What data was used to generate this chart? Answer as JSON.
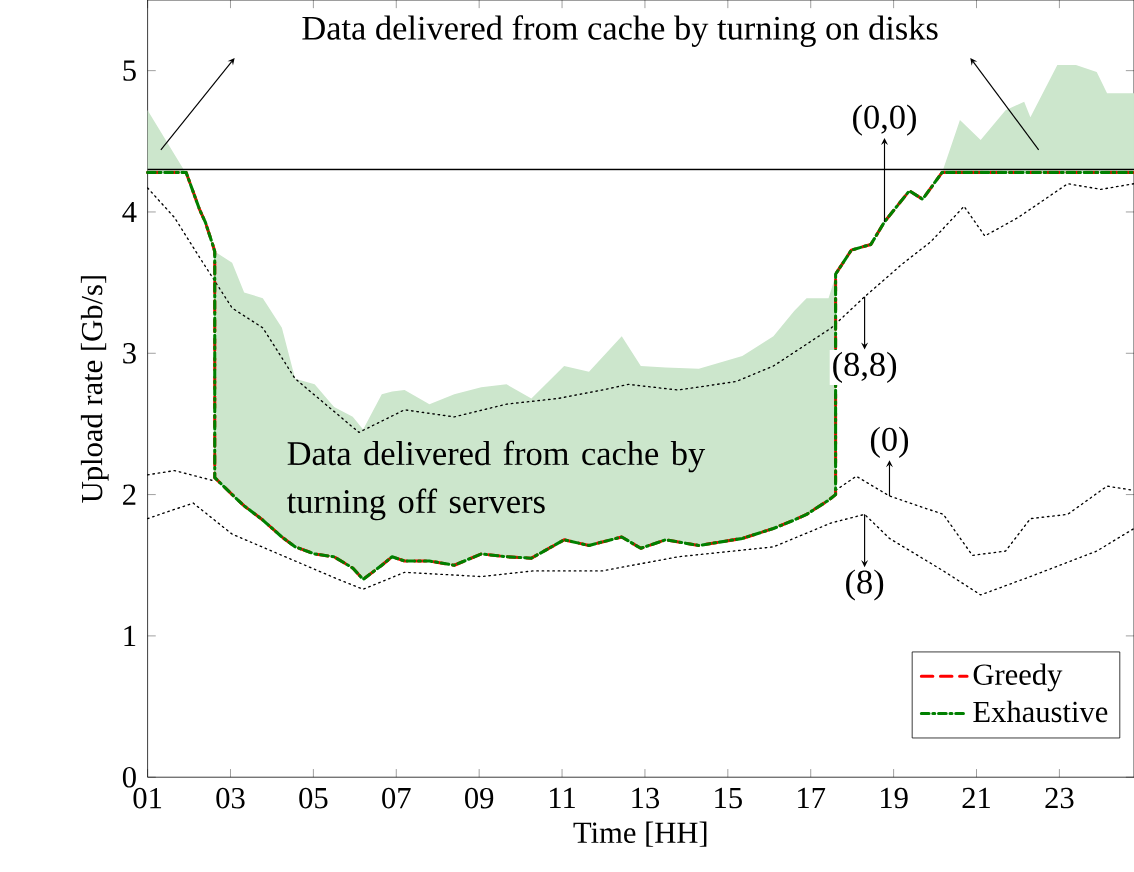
{
  "chart_data": {
    "type": "line",
    "xlabel": "Time [HH]",
    "ylabel": "Upload rate [Gb/s]",
    "xlim": [
      1,
      24.8
    ],
    "ylim": [
      0,
      5.5
    ],
    "xticks": [
      {
        "value": 1,
        "label": "01"
      },
      {
        "value": 3,
        "label": "03"
      },
      {
        "value": 5,
        "label": "05"
      },
      {
        "value": 7,
        "label": "07"
      },
      {
        "value": 9,
        "label": "09"
      },
      {
        "value": 11,
        "label": "11"
      },
      {
        "value": 13,
        "label": "13"
      },
      {
        "value": 15,
        "label": "15"
      },
      {
        "value": 17,
        "label": "17"
      },
      {
        "value": 19,
        "label": "19"
      },
      {
        "value": 21,
        "label": "21"
      },
      {
        "value": 23,
        "label": "23"
      }
    ],
    "yticks": [
      0,
      1,
      2,
      3,
      4,
      5
    ],
    "legend": "bottom right",
    "x": [
      1,
      1.87,
      1.93,
      2.25,
      2.39,
      2.57,
      2.62,
      2.62,
      3.04,
      3.33,
      3.78,
      4.24,
      4.56,
      5.03,
      5.5,
      5.95,
      6.2,
      6.65,
      6.9,
      7.2,
      7.8,
      8.4,
      9.05,
      9.66,
      10.26,
      11.05,
      11.65,
      12.44,
      12.9,
      13.5,
      14.3,
      15.35,
      16.1,
      16.6,
      16.9,
      17.43,
      17.6,
      17.6,
      17.98,
      18.45,
      18.78,
      19.38,
      19.7,
      20.17,
      20.6,
      21.1,
      21.7,
      22.15,
      22.3,
      22.95,
      23.4,
      23.9,
      24.15,
      24.8
    ],
    "series": [
      {
        "name": "Greedy",
        "color": "#ff0000",
        "line_style": "dashed",
        "values": [
          4.28,
          4.28,
          4.28,
          4.02,
          3.93,
          3.77,
          3.72,
          2.12,
          2.0,
          1.92,
          1.82,
          1.7,
          1.63,
          1.58,
          1.56,
          1.48,
          1.4,
          1.5,
          1.56,
          1.53,
          1.53,
          1.5,
          1.58,
          1.56,
          1.55,
          1.68,
          1.64,
          1.7,
          1.62,
          1.68,
          1.64,
          1.69,
          1.76,
          1.82,
          1.86,
          1.96,
          2.0,
          3.56,
          3.73,
          3.77,
          3.93,
          4.15,
          4.09,
          4.28,
          4.28,
          4.28,
          4.28,
          4.28,
          4.28,
          4.28,
          4.28,
          4.28,
          4.28,
          4.28
        ]
      },
      {
        "name": "Exhaustive",
        "color": "#008000",
        "line_style": "dashdot",
        "values": [
          4.28,
          4.28,
          4.28,
          4.02,
          3.93,
          3.77,
          3.72,
          2.12,
          2.0,
          1.92,
          1.82,
          1.7,
          1.63,
          1.58,
          1.56,
          1.48,
          1.4,
          1.5,
          1.56,
          1.53,
          1.53,
          1.5,
          1.58,
          1.56,
          1.55,
          1.68,
          1.64,
          1.7,
          1.62,
          1.68,
          1.64,
          1.69,
          1.76,
          1.82,
          1.86,
          1.96,
          2.0,
          3.56,
          3.73,
          3.77,
          3.93,
          4.15,
          4.09,
          4.28,
          4.28,
          4.28,
          4.28,
          4.28,
          4.28,
          4.28,
          4.28,
          4.28,
          4.28,
          4.28
        ],
        "lower": [
          4.28,
          4.28,
          4.28,
          4.02,
          3.93,
          3.77,
          3.72,
          2.12,
          2.0,
          1.92,
          1.82,
          1.7,
          1.63,
          1.58,
          1.56,
          1.48,
          1.4,
          1.5,
          1.56,
          1.53,
          1.53,
          1.5,
          1.58,
          1.56,
          1.55,
          1.68,
          1.64,
          1.7,
          1.62,
          1.68,
          1.64,
          1.69,
          1.76,
          1.82,
          1.86,
          1.96,
          2.0,
          3.56,
          3.73,
          3.77,
          3.93,
          4.15,
          4.09,
          4.28,
          4.28,
          4.28,
          4.28,
          4.28,
          4.28,
          4.28,
          4.28,
          4.28,
          4.28,
          4.28
        ],
        "upper": [
          4.72,
          4.3,
          4.28,
          4.02,
          3.93,
          3.77,
          3.72,
          3.72,
          3.64,
          3.43,
          3.39,
          3.18,
          2.82,
          2.78,
          2.62,
          2.55,
          2.46,
          2.71,
          2.73,
          2.74,
          2.64,
          2.71,
          2.76,
          2.78,
          2.68,
          2.91,
          2.87,
          3.12,
          2.91,
          2.9,
          2.89,
          2.98,
          3.12,
          3.3,
          3.39,
          3.39,
          3.55,
          3.56,
          3.73,
          3.77,
          3.93,
          4.15,
          4.09,
          4.28,
          4.65,
          4.51,
          4.72,
          4.78,
          4.67,
          5.04,
          5.04,
          4.99,
          4.84,
          4.84
        ]
      },
      {
        "color": "#000000",
        "line_style": "dotted",
        "x": [
          1,
          1.65,
          2.25,
          3.04,
          3.78,
          4.56,
          6.1,
          7.2,
          8.4,
          9.66,
          10.9,
          11.97,
          12.6,
          13.8,
          15.2,
          16.1,
          17.5,
          18.3,
          19.2,
          19.9,
          20.7,
          21.2,
          22.0,
          23.2,
          24.0,
          24.8
        ],
        "values": [
          4.17,
          3.96,
          3.68,
          3.32,
          3.18,
          2.82,
          2.44,
          2.6,
          2.55,
          2.64,
          2.68,
          2.74,
          2.78,
          2.74,
          2.8,
          2.91,
          3.18,
          3.4,
          3.63,
          3.79,
          4.04,
          3.83,
          3.96,
          4.2,
          4.16,
          4.2
        ]
      },
      {
        "color": "#000000",
        "line_style": "dotted",
        "x": [
          1,
          1.65,
          2.57,
          2.62,
          10,
          17.6,
          18.1,
          18.9,
          20.2,
          20.9,
          21.7,
          22.3,
          23.2,
          24.15,
          24.8
        ],
        "values": [
          2.14,
          2.17,
          2.1,
          2.1,
          null,
          2.03,
          2.13,
          1.99,
          1.86,
          1.57,
          1.6,
          1.83,
          1.86,
          2.06,
          2.03
        ]
      },
      {
        "color": "#000000",
        "line_style": "dotted",
        "x": [
          1,
          2.1,
          3.04,
          4.56,
          5.6,
          6.2,
          7.2,
          9.05,
          10.3,
          11.97,
          13.8,
          16.1,
          17.5,
          18.3,
          18.9,
          20.2,
          21.1,
          22.3,
          23.9,
          24.8
        ],
        "values": [
          1.83,
          1.94,
          1.72,
          1.53,
          1.4,
          1.33,
          1.45,
          1.42,
          1.46,
          1.46,
          1.56,
          1.63,
          1.8,
          1.86,
          1.69,
          1.46,
          1.29,
          1.42,
          1.6,
          1.76
        ]
      }
    ],
    "ref_lines": [
      {
        "axis": "y",
        "value": 4.3,
        "color": "#000000",
        "line_style": "solid"
      }
    ],
    "annotations": [
      "Data delivered from cache by turning on disks",
      "Data delivered from cache by turning off servers",
      {
        "text": "(0,0)",
        "x": 18.78,
        "y": 3.93
      },
      {
        "text": "(8,8)",
        "x": 18.3,
        "y": 3.4
      },
      {
        "text": "(0)",
        "x": 18.9,
        "y": 1.99
      },
      {
        "text": "(8)",
        "x": 18.3,
        "y": 1.86
      }
    ]
  }
}
